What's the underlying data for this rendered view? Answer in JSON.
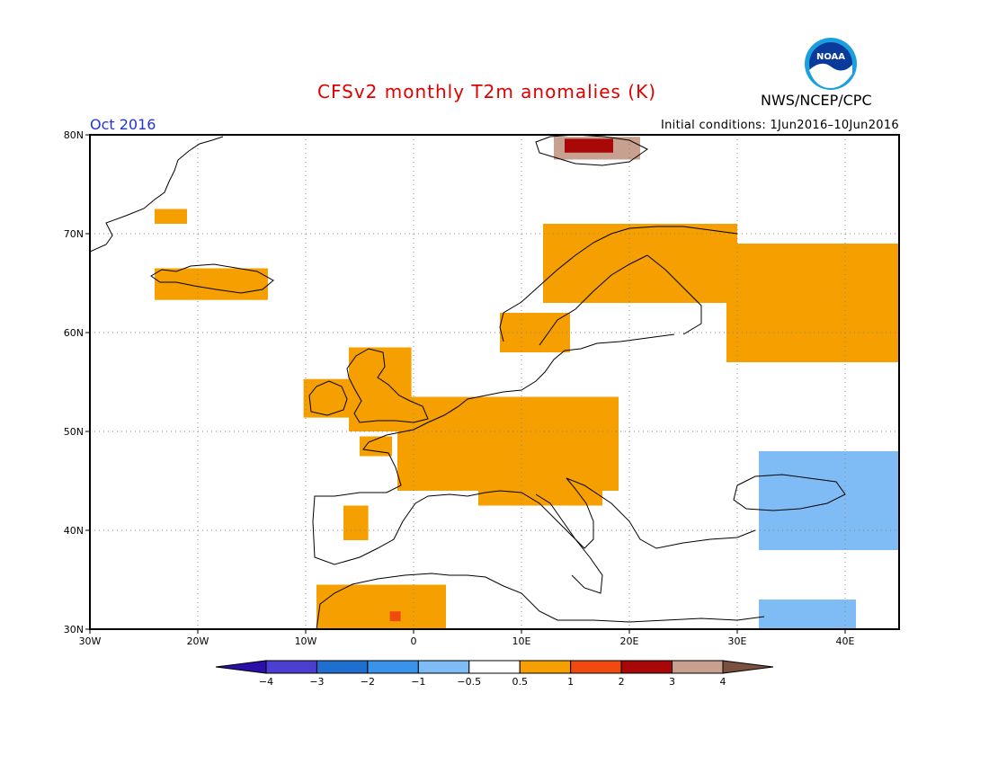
{
  "title": "CFSv2 monthly T2m anomalies (K)",
  "agency": "NWS/NCEP/CPC",
  "logo_text": "NOAA",
  "month_label": "Oct 2016",
  "initial_conditions": "Initial conditions: 1Jun2016–10Jun2016",
  "map": {
    "lon_range": [
      -30,
      45
    ],
    "lat_range": [
      30,
      80
    ],
    "lat_ticks": [
      "30N",
      "40N",
      "50N",
      "60N",
      "70N",
      "80N"
    ],
    "lon_ticks": [
      "30W",
      "20W",
      "10W",
      "0",
      "10E",
      "20E",
      "30E",
      "40E"
    ],
    "grid": "dotted",
    "anomaly_regions": [
      {
        "name": "Svalbard",
        "class": "3to4",
        "lon": [
          13,
          21
        ],
        "lat": [
          77.5,
          79.8
        ]
      },
      {
        "name": "Svalbard",
        "class": "2to3",
        "lon": [
          14,
          18.5
        ],
        "lat": [
          78.2,
          79.6
        ]
      },
      {
        "name": "Greenland coast",
        "class": "0.5to1",
        "lon": [
          -24,
          -21
        ],
        "lat": [
          71,
          72.5
        ]
      },
      {
        "name": "Iceland",
        "class": "0.5to1",
        "lon": [
          -24,
          -13.5
        ],
        "lat": [
          63.3,
          66.5
        ]
      },
      {
        "name": "Ireland",
        "class": "0.5to1",
        "lon": [
          -10.2,
          -5.8
        ],
        "lat": [
          51.4,
          55.3
        ]
      },
      {
        "name": "Great Britain",
        "class": "0.5to1",
        "lon": [
          -6,
          -0.2
        ],
        "lat": [
          50,
          58.5
        ]
      },
      {
        "name": "Brittany",
        "class": "0.5to1",
        "lon": [
          -5,
          -2
        ],
        "lat": [
          47.5,
          49.5
        ]
      },
      {
        "name": "Western and Central Europe",
        "class": "0.5to1",
        "lon": [
          -1.5,
          19
        ],
        "lat": [
          44,
          53.5
        ]
      },
      {
        "name": "Central Europe",
        "class": "0.5to1",
        "lon": [
          6,
          17.5
        ],
        "lat": [
          42.5,
          46
        ]
      },
      {
        "name": "Southern Norway and Sweden",
        "class": "0.5to1",
        "lon": [
          8,
          14.5
        ],
        "lat": [
          58,
          62
        ]
      },
      {
        "name": "Northern Scandinavia",
        "class": "0.5to1",
        "lon": [
          12,
          30
        ],
        "lat": [
          63,
          71
        ]
      },
      {
        "name": "Northwest Russia",
        "class": "0.5to1",
        "lon": [
          29,
          45
        ],
        "lat": [
          57,
          69
        ]
      },
      {
        "name": "Iberia",
        "class": "0.5to1",
        "lon": [
          -6.5,
          -4.2
        ],
        "lat": [
          39,
          42.5
        ]
      },
      {
        "name": "Northwest Africa",
        "class": "0.5to1",
        "lon": [
          -9,
          3
        ],
        "lat": [
          30,
          34.5
        ]
      },
      {
        "name": "Southern Algeria",
        "class": "1to2",
        "lon": [
          -2.2,
          -1.2
        ],
        "lat": [
          30.8,
          31.8
        ]
      },
      {
        "name": "Caucasus and Turkey",
        "class": "-1to-0.5",
        "lon": [
          32,
          45
        ],
        "lat": [
          38,
          48
        ]
      },
      {
        "name": "Levant",
        "class": "-1to-0.5",
        "lon": [
          32,
          41
        ],
        "lat": [
          30,
          33
        ]
      }
    ]
  },
  "colorbar": {
    "tick_labels": [
      "−4",
      "−3",
      "−2",
      "−1",
      "−0.5",
      "0.5",
      "1",
      "2",
      "3",
      "4"
    ],
    "classes": [
      {
        "label": "< -4",
        "color": "#2a0fa8"
      },
      {
        "label": "-4 to -3",
        "color": "#4a3fd0"
      },
      {
        "label": "-3 to -2",
        "color": "#1f6fd0"
      },
      {
        "label": "-2 to -1",
        "color": "#3a93ea"
      },
      {
        "label": "-1 to -0.5",
        "color": "#7fbcf5"
      },
      {
        "label": "-0.5 to 0.5",
        "color": "#ffffff"
      },
      {
        "label": "0.5 to 1",
        "color": "#f5a000"
      },
      {
        "label": "1 to 2",
        "color": "#f04a10"
      },
      {
        "label": "2 to 3",
        "color": "#a80808"
      },
      {
        "label": "3 to 4",
        "color": "#c8a090"
      },
      {
        "label": "> 4",
        "color": "#7a5040"
      }
    ]
  },
  "colors": {
    "title": "#e00000",
    "month_label": "#2233dd",
    "coastline": "#000000",
    "grid": "#888888"
  }
}
